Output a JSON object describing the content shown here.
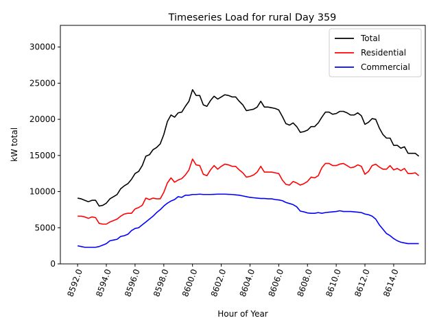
{
  "chart_data": {
    "type": "line",
    "title": "Timeseries Load for rural   Day 359",
    "xlabel": "Hour of Year",
    "ylabel": "kW total",
    "xlim": [
      8590.8,
      8616.2
    ],
    "ylim": [
      0,
      33000
    ],
    "grid": false,
    "legend_position": "top-right",
    "x_ticks": [
      8592,
      8594,
      8596,
      8598,
      8600,
      8602,
      8604,
      8606,
      8608,
      8610,
      8612,
      8614
    ],
    "x_tick_labels": [
      "8592.0",
      "8594.0",
      "8596.0",
      "8598.0",
      "8600.0",
      "8602.0",
      "8604.0",
      "8606.0",
      "8608.0",
      "8610.0",
      "8612.0",
      "8614.0"
    ],
    "y_ticks": [
      0,
      5000,
      10000,
      15000,
      20000,
      25000,
      30000
    ],
    "y_tick_labels": [
      "0",
      "5000",
      "10000",
      "15000",
      "20000",
      "25000",
      "30000"
    ],
    "x_start": 8592,
    "x_step": 0.25,
    "series": [
      {
        "name": "Total",
        "color": "#000000",
        "values": [
          9100,
          9000,
          8800,
          8600,
          8800,
          8800,
          8000,
          8100,
          8400,
          9000,
          9300,
          9600,
          10400,
          10800,
          11100,
          11700,
          12500,
          12800,
          13600,
          14900,
          15100,
          15800,
          16100,
          16600,
          17900,
          19700,
          20600,
          20300,
          20900,
          21000,
          21800,
          22500,
          24100,
          23300,
          23300,
          22000,
          21800,
          22600,
          23200,
          22800,
          23100,
          23400,
          23300,
          23100,
          23100,
          22500,
          22000,
          21200,
          21300,
          21400,
          21700,
          22500,
          21700,
          21700,
          21600,
          21500,
          21300,
          20400,
          19400,
          19200,
          19500,
          19000,
          18200,
          18300,
          18500,
          19000,
          19000,
          19500,
          20300,
          21000,
          21000,
          20700,
          20800,
          21100,
          21100,
          20900,
          20600,
          20600,
          20900,
          20500,
          19300,
          19600,
          20100,
          20000,
          18800,
          17900,
          17400,
          17400,
          16400,
          16400,
          16000,
          16200,
          15300,
          15300,
          15300,
          14900
        ]
      },
      {
        "name": "Residential",
        "color": "#ff0000",
        "values": [
          6600,
          6600,
          6500,
          6300,
          6500,
          6400,
          5600,
          5500,
          5500,
          5800,
          6000,
          6200,
          6600,
          6900,
          7000,
          7000,
          7600,
          7800,
          8100,
          9100,
          8900,
          9100,
          9000,
          9000,
          9900,
          11200,
          11900,
          11300,
          11600,
          11800,
          12300,
          13000,
          14500,
          13700,
          13600,
          12400,
          12200,
          13000,
          13600,
          13100,
          13500,
          13800,
          13700,
          13500,
          13500,
          13000,
          12600,
          12000,
          12100,
          12300,
          12700,
          13500,
          12700,
          12700,
          12700,
          12600,
          12500,
          11600,
          11000,
          10900,
          11400,
          11200,
          10900,
          11100,
          11400,
          12000,
          11900,
          12200,
          13300,
          13900,
          13900,
          13600,
          13600,
          13800,
          13900,
          13600,
          13300,
          13400,
          13700,
          13500,
          12400,
          12800,
          13600,
          13800,
          13400,
          13100,
          13100,
          13600,
          13000,
          13200,
          12900,
          13200,
          12500,
          12500,
          12600,
          12200
        ]
      },
      {
        "name": "Commercial",
        "color": "#0000ff",
        "values": [
          2500,
          2400,
          2300,
          2300,
          2300,
          2300,
          2400,
          2600,
          2800,
          3200,
          3300,
          3400,
          3800,
          3900,
          4100,
          4600,
          4900,
          5000,
          5400,
          5800,
          6200,
          6600,
          7100,
          7500,
          8000,
          8400,
          8700,
          8900,
          9300,
          9200,
          9500,
          9500,
          9600,
          9600,
          9650,
          9600,
          9600,
          9600,
          9620,
          9650,
          9650,
          9650,
          9620,
          9600,
          9550,
          9500,
          9400,
          9300,
          9200,
          9150,
          9100,
          9050,
          9050,
          9000,
          9000,
          8900,
          8850,
          8750,
          8500,
          8350,
          8200,
          7900,
          7300,
          7200,
          7050,
          7000,
          7000,
          7100,
          7000,
          7100,
          7150,
          7200,
          7250,
          7350,
          7250,
          7250,
          7250,
          7200,
          7150,
          7100,
          6900,
          6800,
          6600,
          6200,
          5400,
          4800,
          4200,
          3900,
          3500,
          3200,
          3000,
          2900,
          2800,
          2800,
          2800,
          2800
        ]
      }
    ]
  }
}
